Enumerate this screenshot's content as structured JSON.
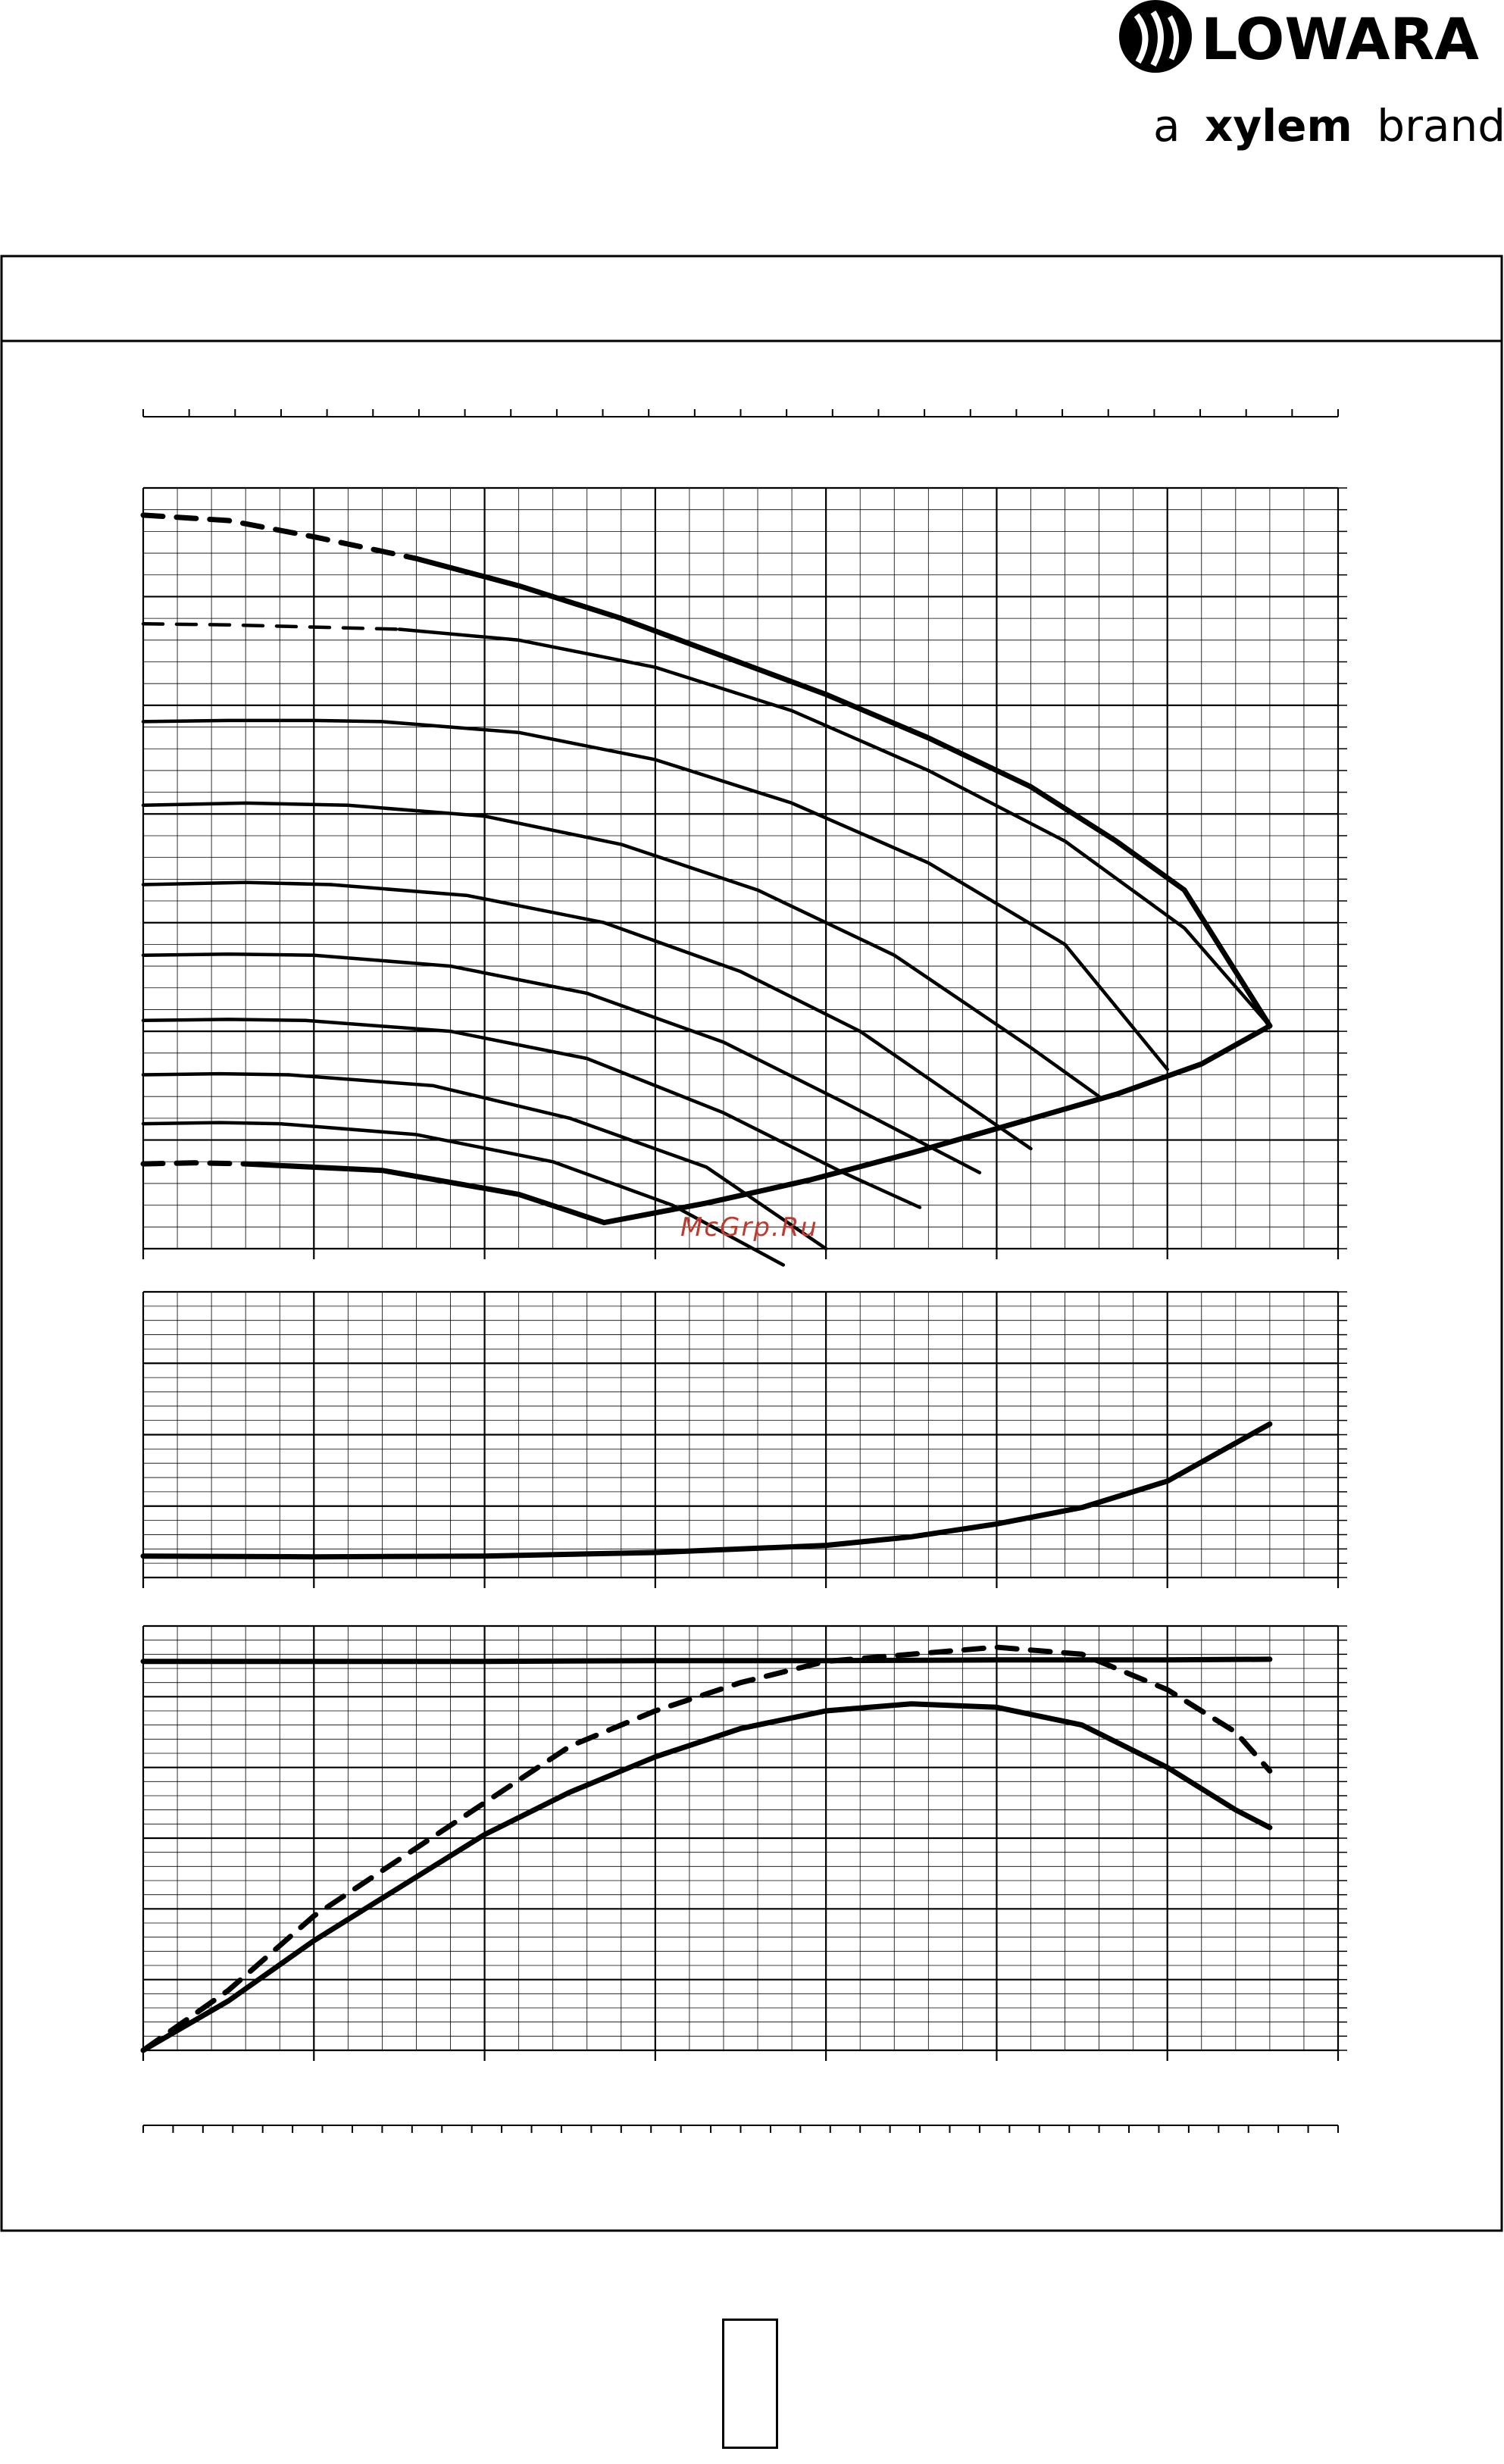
{
  "brand": {
    "logo_text": "LOWARA",
    "tagline_a": "a",
    "tagline_xylem": "xylem",
    "tagline_brand": "brand"
  },
  "watermark": "McGrp.Ru",
  "colors": {
    "line": "#000000",
    "grid": "#000000",
    "watermark": "#c0392b"
  },
  "chart_data": [
    {
      "type": "line",
      "name_hint": "head-curves",
      "x": [
        0,
        1,
        2,
        3,
        4,
        5,
        6,
        7
      ],
      "xlim": [
        0,
        7
      ],
      "ylim": [
        0,
        7
      ],
      "grid": true,
      "series": [
        {
          "x": [
            0.0,
            0.5,
            1.0,
            1.6
          ],
          "y": [
            6.75,
            6.7,
            6.55,
            6.35
          ],
          "dashed": true,
          "bold": true
        },
        {
          "x": [
            1.6,
            2.2,
            2.8,
            3.4,
            4.0,
            4.6,
            5.2,
            5.7,
            6.1,
            6.6
          ],
          "y": [
            6.35,
            6.1,
            5.8,
            5.45,
            5.1,
            4.7,
            4.25,
            3.75,
            3.3,
            2.05
          ],
          "bold": true
        },
        {
          "x": [
            0.0,
            0.5,
            1.0,
            1.5
          ],
          "y": [
            5.75,
            5.74,
            5.72,
            5.7
          ],
          "dashed": true
        },
        {
          "x": [
            1.5,
            2.2,
            3.0,
            3.8,
            4.6,
            5.4,
            6.1,
            6.6
          ],
          "y": [
            5.7,
            5.6,
            5.35,
            4.95,
            4.4,
            3.75,
            2.95,
            2.05
          ]
        },
        {
          "x": [
            0.0,
            0.5,
            1.0,
            1.4
          ],
          "y": [
            4.85,
            4.86,
            4.86,
            4.85
          ]
        },
        {
          "x": [
            1.4,
            2.2,
            3.0,
            3.8,
            4.6,
            5.4,
            6.0
          ],
          "y": [
            4.85,
            4.75,
            4.5,
            4.1,
            3.55,
            2.8,
            1.65
          ]
        },
        {
          "x": [
            0.0,
            0.6,
            1.2
          ],
          "y": [
            4.08,
            4.1,
            4.08
          ]
        },
        {
          "x": [
            1.2,
            2.0,
            2.8,
            3.6,
            4.4,
            5.2,
            5.6
          ],
          "y": [
            4.08,
            3.98,
            3.72,
            3.3,
            2.7,
            1.85,
            1.4
          ]
        },
        {
          "x": [
            0.0,
            0.6,
            1.1
          ],
          "y": [
            3.35,
            3.37,
            3.35
          ]
        },
        {
          "x": [
            1.1,
            1.9,
            2.7,
            3.5,
            4.2,
            4.8,
            5.2
          ],
          "y": [
            3.35,
            3.25,
            3.0,
            2.55,
            2.0,
            1.35,
            0.92
          ]
        },
        {
          "x": [
            0.0,
            0.5,
            1.0
          ],
          "y": [
            2.7,
            2.71,
            2.7
          ]
        },
        {
          "x": [
            1.0,
            1.8,
            2.6,
            3.4,
            4.1,
            4.9
          ],
          "y": [
            2.7,
            2.6,
            2.35,
            1.9,
            1.35,
            0.7
          ]
        },
        {
          "x": [
            0.0,
            0.5,
            0.95
          ],
          "y": [
            2.1,
            2.11,
            2.1
          ]
        },
        {
          "x": [
            0.95,
            1.8,
            2.6,
            3.4,
            4.1,
            4.55
          ],
          "y": [
            2.1,
            2.0,
            1.75,
            1.25,
            0.7,
            0.38
          ]
        },
        {
          "x": [
            0.0,
            0.45,
            0.85
          ],
          "y": [
            1.6,
            1.61,
            1.6
          ]
        },
        {
          "x": [
            0.85,
            1.7,
            2.5,
            3.3,
            4.0
          ],
          "y": [
            1.6,
            1.5,
            1.2,
            0.75,
            0.0
          ]
        },
        {
          "x": [
            0.0,
            0.45,
            0.8
          ],
          "y": [
            1.15,
            1.16,
            1.15
          ]
        },
        {
          "x": [
            0.8,
            1.6,
            2.4,
            3.1,
            3.75
          ],
          "y": [
            1.15,
            1.05,
            0.8,
            0.4,
            -0.15
          ]
        },
        {
          "x": [
            0.0,
            0.3,
            0.6
          ],
          "y": [
            0.78,
            0.79,
            0.78
          ],
          "dashed": true,
          "bold": true
        },
        {
          "x": [
            0.6,
            1.4,
            2.2,
            2.7
          ],
          "y": [
            0.78,
            0.72,
            0.5,
            0.24
          ],
          "bold": true
        },
        {
          "x": [
            2.7,
            3.3,
            3.9,
            4.5,
            5.1,
            5.7,
            6.2,
            6.6
          ],
          "y": [
            0.24,
            0.42,
            0.63,
            0.88,
            1.15,
            1.42,
            1.7,
            2.05
          ],
          "bold": true
        }
      ]
    },
    {
      "type": "line",
      "name_hint": "npsh-curve",
      "xlim": [
        0,
        7
      ],
      "ylim": [
        0,
        4
      ],
      "grid": true,
      "series": [
        {
          "x": [
            0.0,
            1.0,
            2.0,
            3.0,
            4.0,
            4.5,
            5.0,
            5.5,
            6.0,
            6.6
          ],
          "y": [
            0.3,
            0.29,
            0.3,
            0.35,
            0.45,
            0.57,
            0.75,
            0.98,
            1.35,
            2.15
          ],
          "bold": true
        }
      ]
    },
    {
      "type": "line",
      "name_hint": "power-efficiency-curves",
      "xlim": [
        0,
        7
      ],
      "ylim": [
        0,
        6
      ],
      "grid": true,
      "series": [
        {
          "x": [
            0.0,
            1.0,
            2.0,
            3.0,
            4.0,
            5.0,
            6.0,
            6.6
          ],
          "y": [
            5.5,
            5.5,
            5.5,
            5.51,
            5.51,
            5.52,
            5.52,
            5.53
          ],
          "bold": true
        },
        {
          "x": [
            0.0,
            0.5,
            1.0,
            1.5,
            2.0,
            2.5,
            3.0,
            3.5,
            4.0,
            4.5,
            5.0,
            5.5,
            6.0,
            6.4,
            6.6
          ],
          "y": [
            0.0,
            0.85,
            1.9,
            2.7,
            3.5,
            4.3,
            4.8,
            5.2,
            5.5,
            5.6,
            5.7,
            5.6,
            5.1,
            4.5,
            3.95
          ],
          "dashed": true,
          "bold": true
        },
        {
          "x": [
            0.0,
            0.5,
            1.0,
            1.5,
            2.0,
            2.5,
            3.0,
            3.5,
            4.0,
            4.5,
            5.0,
            5.5,
            6.0,
            6.4,
            6.6
          ],
          "y": [
            0.0,
            0.7,
            1.55,
            2.3,
            3.05,
            3.65,
            4.15,
            4.55,
            4.8,
            4.9,
            4.85,
            4.6,
            4.0,
            3.4,
            3.15
          ],
          "bold": true
        }
      ]
    }
  ]
}
